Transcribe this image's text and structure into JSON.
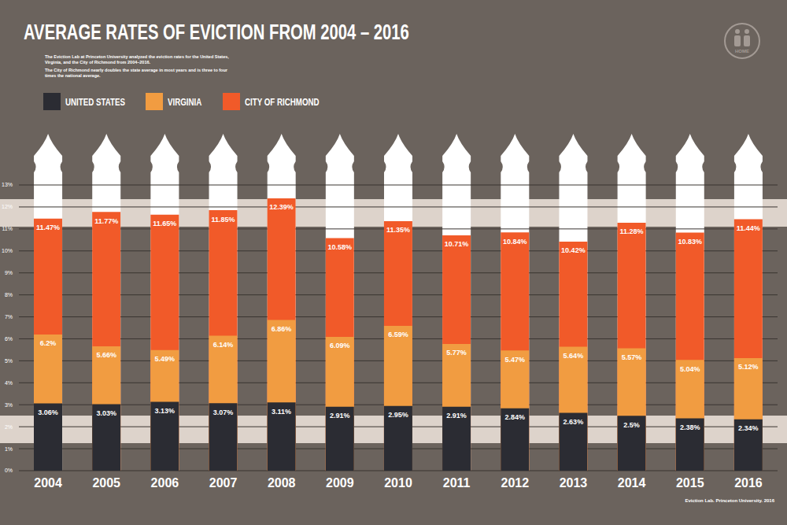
{
  "chart_data": {
    "type": "bar",
    "title": "AVERAGE RATES OF EVICTION FROM 2004 – 2016",
    "subtitle": [
      "The Eviction Lab at Princeton University analyzed the eviction rates for the United States, Virginia, and the City of Richmond from 2004–2016.",
      "The City of Richmond nearly doubles the state average in most years and is three to four times the national average."
    ],
    "source": "Eviction Lab. Princeton University. 2016",
    "annotations": [
      "HOME"
    ],
    "categories": [
      "2004",
      "2005",
      "2006",
      "2007",
      "2008",
      "2009",
      "2010",
      "2011",
      "2012",
      "2013",
      "2014",
      "2015",
      "2016"
    ],
    "series": [
      {
        "name": "UNITED STATES",
        "color": "#2b2c33",
        "values": [
          3.06,
          3.03,
          3.13,
          3.07,
          3.11,
          2.91,
          2.95,
          2.91,
          2.84,
          2.63,
          2.5,
          2.38,
          2.34
        ],
        "value_labels": [
          "3.06%",
          "3.03%",
          "3.13%",
          "3.07%",
          "3.11%",
          "2.91%",
          "2.95%",
          "2.91%",
          "2.84%",
          "2.63%",
          "2.5%",
          "2.38%",
          "2.34%"
        ]
      },
      {
        "name": "VIRGINIA",
        "color": "#f19c41",
        "values": [
          6.2,
          5.66,
          5.49,
          6.14,
          6.86,
          6.09,
          6.59,
          5.77,
          5.47,
          5.64,
          5.57,
          5.04,
          5.12
        ],
        "value_labels": [
          "6.2%",
          "5.66%",
          "5.49%",
          "6.14%",
          "6.86%",
          "6.09%",
          "6.59%",
          "5.77%",
          "5.47%",
          "5.64%",
          "5.57%",
          "5.04%",
          "5.12%"
        ]
      },
      {
        "name": "CITY OF RICHMOND",
        "color": "#f15a29",
        "values": [
          11.47,
          11.77,
          11.65,
          11.85,
          12.39,
          10.58,
          11.35,
          10.71,
          10.84,
          10.42,
          11.28,
          10.83,
          11.44
        ],
        "value_labels": [
          "11.47%",
          "11.77%",
          "11.65%",
          "11.85%",
          "12.39%",
          "10.58%",
          "11.35%",
          "10.71%",
          "10.84%",
          "10.42%",
          "11.28%",
          "10.83%",
          "11.44%"
        ]
      }
    ],
    "stacked": false,
    "ylim": [
      0,
      13
    ],
    "yticks": [
      {
        "value": 0,
        "label": "0%"
      },
      {
        "value": 1,
        "label": "1%"
      },
      {
        "value": 2,
        "label": "2%"
      },
      {
        "value": 3,
        "label": "3%"
      },
      {
        "value": 4,
        "label": "4%"
      },
      {
        "value": 5,
        "label": "5%"
      },
      {
        "value": 6,
        "label": "6%"
      },
      {
        "value": 7,
        "label": "7%"
      },
      {
        "value": 8,
        "label": "8%"
      },
      {
        "value": 9,
        "label": "9%"
      },
      {
        "value": 10,
        "label": "10%"
      },
      {
        "value": 11,
        "label": "11%"
      },
      {
        "value": 12,
        "label": "12%"
      },
      {
        "value": 13,
        "label": "13%"
      }
    ],
    "grid": true,
    "legend": "top-left",
    "data_labels": true
  }
}
